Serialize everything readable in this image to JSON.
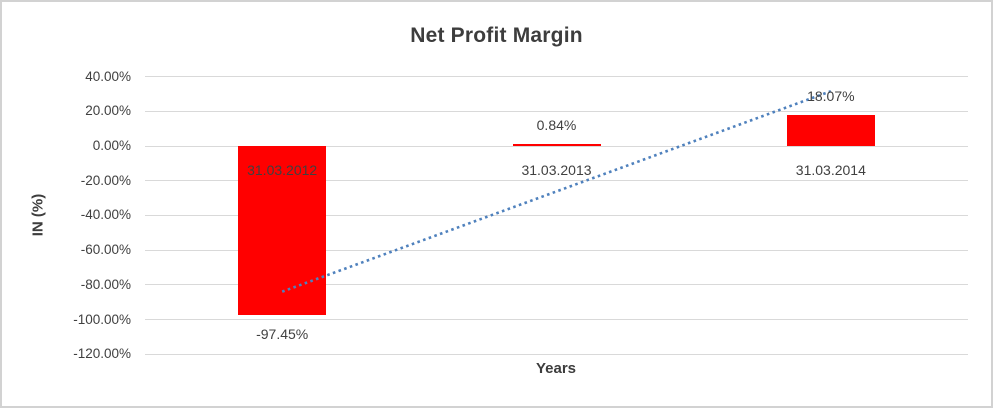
{
  "chart_data": {
    "type": "bar",
    "title": "Net Profit Margin",
    "xlabel": "Years",
    "ylabel": "IN (%)",
    "categories": [
      "31.03.2012",
      "31.03.2013",
      "31.03.2014"
    ],
    "series": [
      {
        "name": "Net Profit Margin",
        "values": [
          -97.45,
          0.84,
          18.07
        ],
        "data_labels": [
          "-97.45%",
          "0.84%",
          "18.07%"
        ],
        "color": "#ff0000"
      }
    ],
    "ylim": [
      -120,
      40
    ],
    "ytick_step": 20,
    "yticks": [
      "40.00%",
      "20.00%",
      "0.00%",
      "-20.00%",
      "-40.00%",
      "-60.00%",
      "-80.00%",
      "-100.00%",
      "-120.00%"
    ],
    "grid": true,
    "legend": "none",
    "trendline": {
      "type": "linear",
      "line_style": "dotted",
      "color": "#4f81bd",
      "fitted_endpoints_pct": [
        -83.94,
        31.58
      ]
    },
    "colors": {
      "bar": "#ff0000",
      "gridline": "#d9d9d9",
      "text": "#404040",
      "title_text": "#3d3d3d",
      "frame_border": "#d2d2d2",
      "background": "#ffffff"
    }
  }
}
